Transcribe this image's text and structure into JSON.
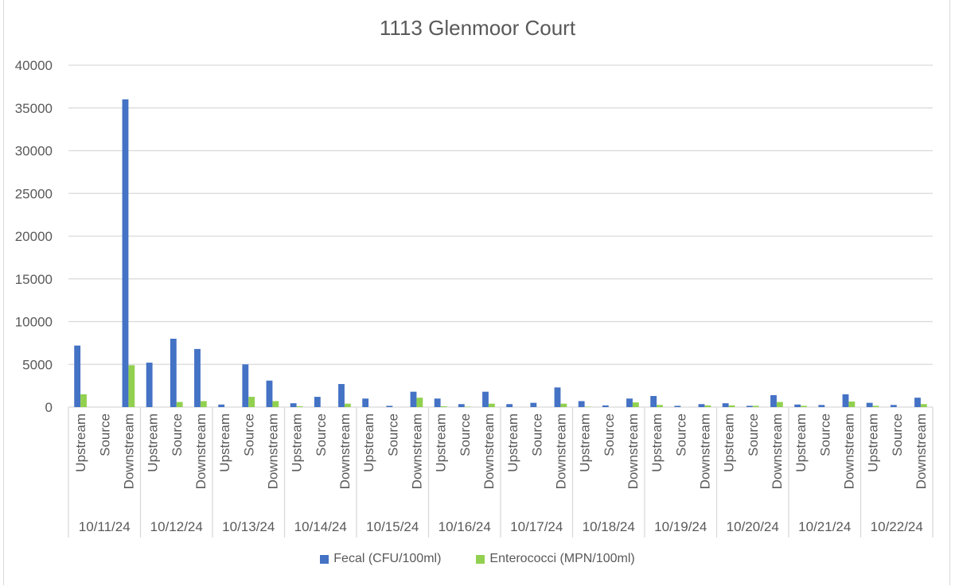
{
  "chart_data": {
    "type": "bar",
    "title": "1113 Glenmoor Court",
    "xlabel": "",
    "ylabel": "",
    "ylim": [
      0,
      40000
    ],
    "yticks": [
      0,
      5000,
      10000,
      15000,
      20000,
      25000,
      30000,
      35000,
      40000
    ],
    "grid": true,
    "legend_position": "bottom",
    "groups": [
      "10/11/24",
      "10/12/24",
      "10/13/24",
      "10/14/24",
      "10/15/24",
      "10/16/24",
      "10/17/24",
      "10/18/24",
      "10/19/24",
      "10/20/24",
      "10/21/24",
      "10/22/24"
    ],
    "subcategories": [
      "Upstream",
      "Source",
      "Downstream"
    ],
    "categories": [
      "10/11/24 Upstream",
      "10/11/24 Source",
      "10/11/24 Downstream",
      "10/12/24 Upstream",
      "10/12/24 Source",
      "10/12/24 Downstream",
      "10/13/24 Upstream",
      "10/13/24 Source",
      "10/13/24 Downstream",
      "10/14/24 Upstream",
      "10/14/24 Source",
      "10/14/24 Downstream",
      "10/15/24 Upstream",
      "10/15/24 Source",
      "10/15/24 Downstream",
      "10/16/24 Upstream",
      "10/16/24 Source",
      "10/16/24 Downstream",
      "10/17/24 Upstream",
      "10/17/24 Source",
      "10/17/24 Downstream",
      "10/18/24 Upstream",
      "10/18/24 Source",
      "10/18/24 Downstream",
      "10/19/24 Upstream",
      "10/19/24 Source",
      "10/19/24 Downstream",
      "10/20/24 Upstream",
      "10/20/24 Source",
      "10/20/24 Downstream",
      "10/21/24 Upstream",
      "10/21/24 Source",
      "10/21/24 Downstream",
      "10/22/24 Upstream",
      "10/22/24 Source",
      "10/22/24 Downstream"
    ],
    "series": [
      {
        "name": "Fecal (CFU/100ml)",
        "color": "#4472c4",
        "values": [
          7200,
          0,
          36000,
          5200,
          8000,
          6800,
          300,
          5000,
          3100,
          450,
          1200,
          2700,
          1000,
          150,
          1800,
          1000,
          350,
          1800,
          350,
          500,
          2300,
          700,
          200,
          1000,
          1300,
          150,
          350,
          450,
          150,
          1400,
          300,
          250,
          1500,
          500,
          250,
          1100
        ]
      },
      {
        "name": "Enterococci (MPN/100ml)",
        "color": "#92d050",
        "values": [
          1500,
          0,
          4900,
          0,
          600,
          700,
          0,
          1200,
          700,
          100,
          0,
          400,
          0,
          0,
          1100,
          100,
          50,
          400,
          0,
          0,
          400,
          50,
          0,
          550,
          250,
          0,
          200,
          200,
          150,
          600,
          150,
          0,
          650,
          150,
          0,
          350
        ]
      }
    ]
  },
  "title": "1113 Glenmoor Court",
  "legend": {
    "items": [
      {
        "label": "Fecal (CFU/100ml)",
        "color": "#4472c4"
      },
      {
        "label": "Enterococci (MPN/100ml)",
        "color": "#92d050"
      }
    ]
  }
}
